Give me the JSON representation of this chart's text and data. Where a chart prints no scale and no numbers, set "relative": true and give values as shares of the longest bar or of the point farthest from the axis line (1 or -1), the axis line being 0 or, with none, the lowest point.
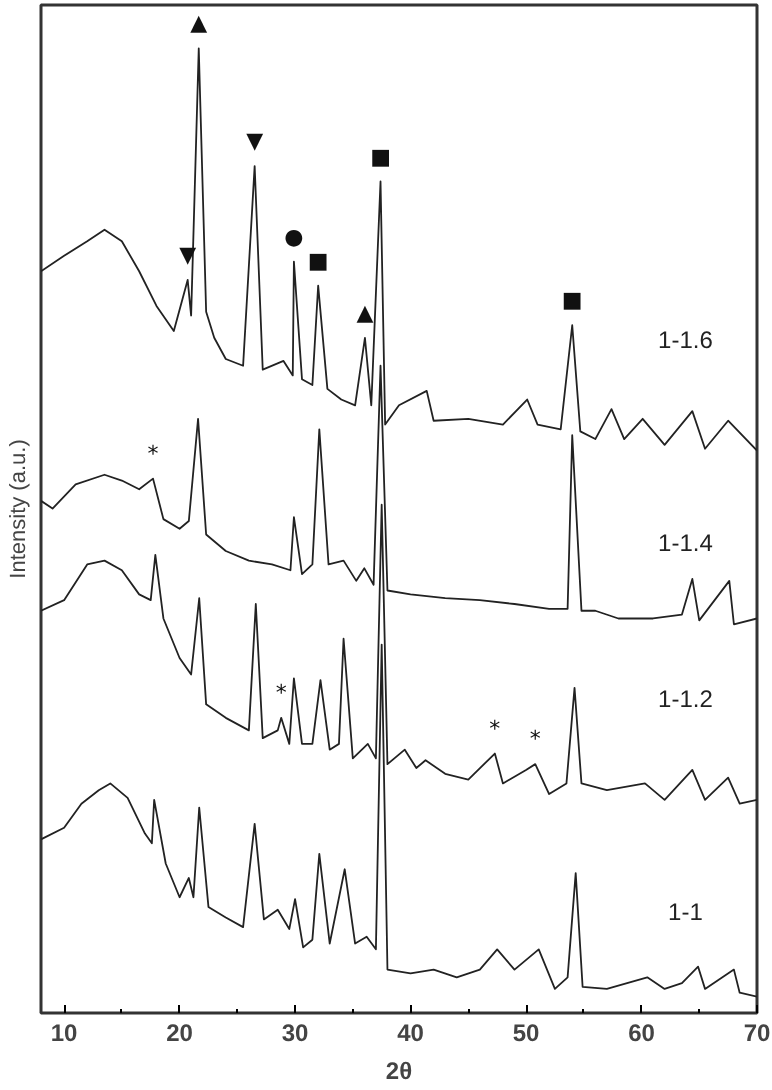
{
  "chart_data": {
    "type": "line",
    "relative": true,
    "xlabel": "2θ",
    "ylabel": "Intensity (a.u.)",
    "xlim": [
      8,
      70
    ],
    "xticks": [
      10,
      20,
      30,
      40,
      50,
      60,
      70
    ],
    "tick_labels": "x",
    "grid": false,
    "legend": false,
    "marker": "none",
    "line_style": "solid",
    "series": [
      {
        "name": "1-1.6",
        "color": "#222222",
        "x": [
          8,
          10,
          12,
          13.5,
          15,
          16.5,
          18,
          19.5,
          20.7,
          21.0,
          21.66,
          22.3,
          23,
          24,
          25.5,
          26.5,
          27.2,
          29,
          29.8,
          29.9,
          30.6,
          31.5,
          32.0,
          32.8,
          34,
          35.2,
          36.05,
          36.6,
          37.4,
          37.8,
          39,
          41.4,
          42,
          45,
          48,
          50.1,
          51,
          53,
          54.0,
          54.7,
          56,
          57.4,
          58.5,
          60.1,
          62,
          64.4,
          65.5,
          67.5,
          70
        ],
        "values": [
          0.769,
          0.785,
          0.8,
          0.812,
          0.8,
          0.769,
          0.733,
          0.707,
          0.76,
          0.723,
          1.0,
          0.727,
          0.7,
          0.678,
          0.671,
          0.878,
          0.667,
          0.676,
          0.661,
          0.779,
          0.657,
          0.651,
          0.754,
          0.647,
          0.636,
          0.63,
          0.7,
          0.63,
          0.862,
          0.61,
          0.63,
          0.645,
          0.614,
          0.616,
          0.61,
          0.636,
          0.61,
          0.605,
          0.713,
          0.603,
          0.595,
          0.626,
          0.595,
          0.616,
          0.589,
          0.624,
          0.585,
          0.614,
          0.583
        ]
      },
      {
        "name": "1-1.4",
        "color": "#222222",
        "x": [
          8,
          9,
          11,
          13.5,
          15,
          16.5,
          17.7,
          18.6,
          20,
          20.8,
          21.6,
          22.3,
          24,
          26,
          28,
          29.6,
          29.9,
          30.6,
          31.5,
          32.1,
          32.9,
          34.2,
          35.3,
          36.0,
          36.8,
          37.4,
          38,
          40,
          43,
          46,
          49,
          52,
          53.6,
          54.0,
          54.8,
          56,
          58,
          61,
          63.5,
          64.4,
          65,
          67.6,
          68,
          70
        ],
        "values": [
          0.531,
          0.523,
          0.548,
          0.558,
          0.552,
          0.543,
          0.554,
          0.512,
          0.502,
          0.51,
          0.616,
          0.496,
          0.479,
          0.469,
          0.465,
          0.459,
          0.514,
          0.455,
          0.465,
          0.605,
          0.465,
          0.469,
          0.448,
          0.461,
          0.444,
          0.671,
          0.438,
          0.434,
          0.43,
          0.428,
          0.424,
          0.419,
          0.419,
          0.599,
          0.417,
          0.417,
          0.409,
          0.409,
          0.413,
          0.45,
          0.407,
          0.448,
          0.403,
          0.409
        ]
      },
      {
        "name": "1-1.2",
        "color": "#222222",
        "x": [
          8,
          10,
          12,
          13.5,
          15,
          16.5,
          17.5,
          17.9,
          18.6,
          20,
          21,
          21.7,
          22.3,
          24,
          26,
          26.6,
          27.2,
          28.5,
          28.8,
          29.5,
          29.9,
          30.6,
          31.5,
          32.2,
          33,
          33.8,
          34.2,
          35,
          36.3,
          37.0,
          37.5,
          38,
          39.5,
          40.5,
          41.3,
          43,
          45,
          47.3,
          48,
          50,
          50.8,
          52,
          53.5,
          54.2,
          54.8,
          57,
          60.3,
          62,
          64.4,
          65.5,
          67.5,
          68.5,
          70
        ],
        "values": [
          0.417,
          0.428,
          0.465,
          0.469,
          0.459,
          0.434,
          0.428,
          0.475,
          0.409,
          0.368,
          0.351,
          0.43,
          0.32,
          0.306,
          0.293,
          0.424,
          0.285,
          0.293,
          0.306,
          0.279,
          0.347,
          0.279,
          0.279,
          0.345,
          0.273,
          0.279,
          0.388,
          0.264,
          0.279,
          0.264,
          0.527,
          0.258,
          0.273,
          0.254,
          0.262,
          0.248,
          0.242,
          0.269,
          0.238,
          0.252,
          0.258,
          0.227,
          0.238,
          0.337,
          0.238,
          0.231,
          0.238,
          0.221,
          0.252,
          0.221,
          0.244,
          0.217,
          0.221
        ]
      },
      {
        "name": "1-1",
        "color": "#222222",
        "x": [
          8,
          10,
          11.5,
          13,
          14,
          15.5,
          17,
          17.6,
          17.8,
          18.8,
          20,
          20.8,
          21.2,
          21.7,
          22.5,
          24,
          25.5,
          26.5,
          27.3,
          28.5,
          29.5,
          30.0,
          30.7,
          31.5,
          32.1,
          33,
          34.3,
          35.2,
          36.2,
          37.0,
          37.5,
          38,
          40,
          42,
          44,
          46,
          47.5,
          49,
          51.1,
          52.5,
          53.6,
          54.3,
          54.9,
          57,
          60.5,
          62,
          63.5,
          64.9,
          65.5,
          68.0,
          68.5,
          70
        ],
        "values": [
          0.18,
          0.192,
          0.217,
          0.231,
          0.238,
          0.223,
          0.186,
          0.176,
          0.221,
          0.155,
          0.12,
          0.14,
          0.12,
          0.213,
          0.11,
          0.099,
          0.089,
          0.196,
          0.097,
          0.107,
          0.087,
          0.118,
          0.068,
          0.076,
          0.165,
          0.072,
          0.149,
          0.072,
          0.079,
          0.066,
          0.382,
          0.045,
          0.041,
          0.045,
          0.037,
          0.045,
          0.066,
          0.045,
          0.066,
          0.025,
          0.037,
          0.145,
          0.027,
          0.025,
          0.037,
          0.025,
          0.031,
          0.048,
          0.025,
          0.045,
          0.021,
          0.017
        ]
      }
    ],
    "annotations": [
      {
        "text": "▲",
        "x": 21.66,
        "y": 1.0
      },
      {
        "text": "▼",
        "x": 26.5,
        "y": 0.878
      },
      {
        "text": "▼",
        "x": 20.7,
        "y": 0.76
      },
      {
        "text": "●",
        "x": 29.9,
        "y": 0.779
      },
      {
        "text": "■",
        "x": 32.0,
        "y": 0.754
      },
      {
        "text": "▲",
        "x": 36.05,
        "y": 0.7
      },
      {
        "text": "■",
        "x": 37.4,
        "y": 0.862
      },
      {
        "text": "■",
        "x": 54.0,
        "y": 0.713
      },
      {
        "text": "*",
        "x": 17.7,
        "y": 0.554
      },
      {
        "text": "*",
        "x": 28.8,
        "y": 0.306
      },
      {
        "text": "*",
        "x": 47.3,
        "y": 0.269
      },
      {
        "text": "*",
        "x": 50.8,
        "y": 0.258
      }
    ]
  }
}
